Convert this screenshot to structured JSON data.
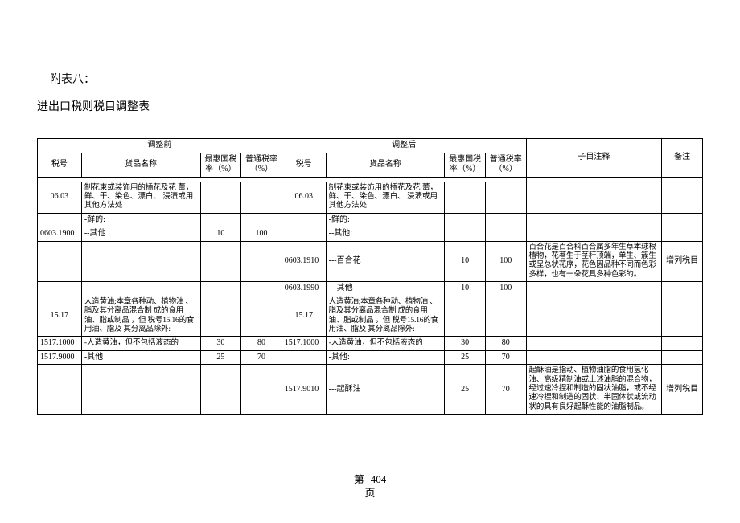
{
  "heading": {
    "attachment": "附表八：",
    "title": "进出口税则税目调整表"
  },
  "headers": {
    "before": "调整前",
    "after": "调整后",
    "taxno": "税号",
    "name": "货品名称",
    "mfn": "最惠国税率（%）",
    "general": "普通税率（%）",
    "subnote": "子目注释",
    "remark": "备注"
  },
  "rows": {
    "r1": {
      "b_no": "06.03",
      "b_name": "制花束或装饰用的插花及花 蕾，鲜、干、染色、漂白、 浸渍或用其他方法处",
      "a_no": "06.03",
      "a_name": "制花束或装饰用的插花及花 蕾，鲜、干、染色、漂白、 浸渍或用其他方法处"
    },
    "r2": {
      "b_name": "-鲜的:",
      "a_name": "-鲜的:"
    },
    "r3": {
      "b_no": "0603.1900",
      "b_name": "--其他",
      "b_mfn": "10",
      "b_gen": "100",
      "a_name": "--其他:"
    },
    "r4": {
      "a_no": "0603.1910",
      "a_name": "---百合花",
      "a_mfn": "10",
      "a_gen": "100",
      "note": "百合花是百合科百合属多年生草本球根植物，花著生于茎秆顶端，单生、簇生或呈总状花序，花色因品种不同而色彩多样，也有一朵花具多种色彩的。",
      "remark": "增列税目"
    },
    "r5": {
      "a_no": "0603.1990",
      "a_name": "---其他",
      "a_mfn": "10",
      "a_gen": "100"
    },
    "r6": {
      "b_no": "15.17",
      "b_name": "人造黄油;本章各种动、植物油 、脂及其分离品混合制 成的食用油、脂或制品 ，但 税号15.16的食用油、脂及 其分离品除外:",
      "a_no": "15.17",
      "a_name": "人造黄油;本章各种动、植物油 、脂及其分离品混合制 成的食用油、脂或制品 ，但 税号15.16的食用油、脂及 其分离品除外:"
    },
    "r7": {
      "b_no": "1517.1000",
      "b_name": "-人造黄油，但不包括液态的",
      "b_mfn": "30",
      "b_gen": "80",
      "a_no": "1517.1000",
      "a_name": "-人造黄油，但不包括液态的",
      "a_mfn": "30",
      "a_gen": "80"
    },
    "r8": {
      "b_no": "1517.9000",
      "b_name": "-其他",
      "b_mfn": "25",
      "b_gen": "70",
      "a_name": "-其他:",
      "a_mfn": "25",
      "a_gen": "70"
    },
    "r9": {
      "a_no": "1517.9010",
      "a_name": "---起酥油",
      "a_mfn": "25",
      "a_gen": "70",
      "note": "起酥油是指动、植物油脂的食用氢化油、高级精制油或上述油脂的混合物，经过速冷捏和制造的固状油脂，或不经速冷捏和制造的固状、半固体状或流动状的具有良好起酥性能的油脂制品。",
      "remark": "增列税目"
    }
  },
  "footer": {
    "label": "第",
    "num": "404",
    "unit": "页"
  }
}
